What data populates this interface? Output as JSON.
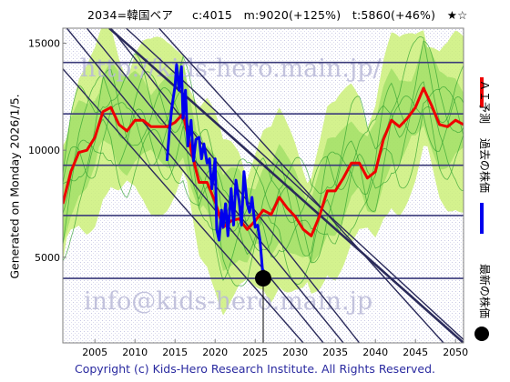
{
  "title": "2034=韓国ベア     c:4015   m:9020(+125%)   t:5860(+46%)   ★☆",
  "side_note": "Generated on Monday 2026/1/5.",
  "copyright": "Copyright (c) Kids-Hero Research Institute. All Rights Reserved.",
  "watermark": {
    "top": "http://kids-hero.main.jp/",
    "bottom": "info@kids-hero.main.jp"
  },
  "legend": [
    {
      "label": "ＡＩ予測",
      "color": "#ee0000"
    },
    {
      "label": "過去の株価",
      "color": "#0000ee"
    },
    {
      "label": "最新の株価",
      "color": "#000000"
    }
  ],
  "colors": {
    "axis_frame": "#7f7f7f",
    "hline": "#3a3a7a",
    "trend": "#2a2a5a",
    "band_outer": "#ccf07a",
    "band_inner": "#8fd85a",
    "band_line": "#2fa02f"
  },
  "chart_data": {
    "type": "line",
    "title": "2034=韓国ベア",
    "xlim": [
      2001,
      2051
    ],
    "ylim": [
      1000,
      15700
    ],
    "x_ticks": [
      2005,
      2010,
      2015,
      2020,
      2025,
      2030,
      2035,
      2040,
      2045,
      2050
    ],
    "y_ticks": [
      5000,
      10000,
      15000
    ],
    "horizontal_levels": [
      14100,
      11700,
      9300,
      6950,
      4015
    ],
    "trend_lines": [
      {
        "x": [
          2008.9,
          2051
        ],
        "y": [
          15700,
          1150
        ]
      },
      {
        "x": [
          2006.8,
          2051
        ],
        "y": [
          15700,
          1000
        ]
      },
      {
        "x": [
          2007.0,
          2038.0
        ],
        "y": [
          15700,
          1000
        ]
      },
      {
        "x": [
          2004.0,
          2036.0
        ],
        "y": [
          15700,
          1000
        ]
      },
      {
        "x": [
          2001.5,
          2033.5
        ],
        "y": [
          15700,
          1000
        ]
      },
      {
        "x": [
          2013.0,
          2048.5
        ],
        "y": [
          15700,
          1000
        ]
      },
      {
        "x": [
          2001.0,
          2031.0
        ],
        "y": [
          13800,
          1000
        ]
      }
    ],
    "series": [
      {
        "name": "ＡＩ予測",
        "x": [
          2001,
          2002,
          2003,
          2004,
          2005,
          2006,
          2007,
          2008,
          2009,
          2010,
          2011,
          2012,
          2013,
          2014,
          2015,
          2016,
          2017,
          2018,
          2019,
          2020,
          2021,
          2022,
          2023,
          2024,
          2025,
          2026,
          2027,
          2028,
          2029,
          2030,
          2031,
          2032,
          2033,
          2034,
          2035,
          2036,
          2037,
          2038,
          2039,
          2040,
          2041,
          2042,
          2043,
          2044,
          2045,
          2046,
          2047,
          2048,
          2049,
          2050,
          2051
        ],
        "y": [
          7500,
          9000,
          9900,
          10000,
          10600,
          11800,
          12000,
          11200,
          10900,
          11400,
          11400,
          11100,
          11100,
          11100,
          11300,
          11700,
          10000,
          8500,
          8500,
          7600,
          6400,
          6700,
          6800,
          6300,
          6700,
          7200,
          7000,
          7800,
          7300,
          6900,
          6300,
          6000,
          6900,
          8100,
          8100,
          8700,
          9400,
          9400,
          8700,
          9000,
          10500,
          11400,
          11100,
          11500,
          12000,
          12900,
          12100,
          11200,
          11100,
          11400,
          11200
        ]
      },
      {
        "name": "過去の株価",
        "x": [
          2014.0,
          2014.3,
          2014.6,
          2015.0,
          2015.2,
          2015.5,
          2015.8,
          2016.0,
          2016.3,
          2016.6,
          2017.0,
          2017.3,
          2017.6,
          2018.0,
          2018.3,
          2018.6,
          2019.0,
          2019.3,
          2019.6,
          2020.0,
          2020.2,
          2020.5,
          2020.8,
          2021.0,
          2021.3,
          2021.6,
          2022.0,
          2022.3,
          2022.6,
          2023.0,
          2023.3,
          2023.6,
          2024.0,
          2024.3,
          2024.6,
          2025.0,
          2025.3,
          2025.6,
          2026.0
        ],
        "y": [
          9500,
          10900,
          12000,
          13000,
          14000,
          12800,
          13900,
          11500,
          12800,
          10200,
          11400,
          9500,
          10500,
          10600,
          9600,
          10300,
          9400,
          9600,
          8200,
          9600,
          6300,
          5800,
          7200,
          6400,
          7500,
          6000,
          8200,
          6500,
          8600,
          7600,
          6500,
          9000,
          7500,
          7100,
          7800,
          6400,
          6500,
          5800,
          4015
        ]
      }
    ],
    "latest_point": {
      "x": 2026.0,
      "y": 4015
    }
  }
}
